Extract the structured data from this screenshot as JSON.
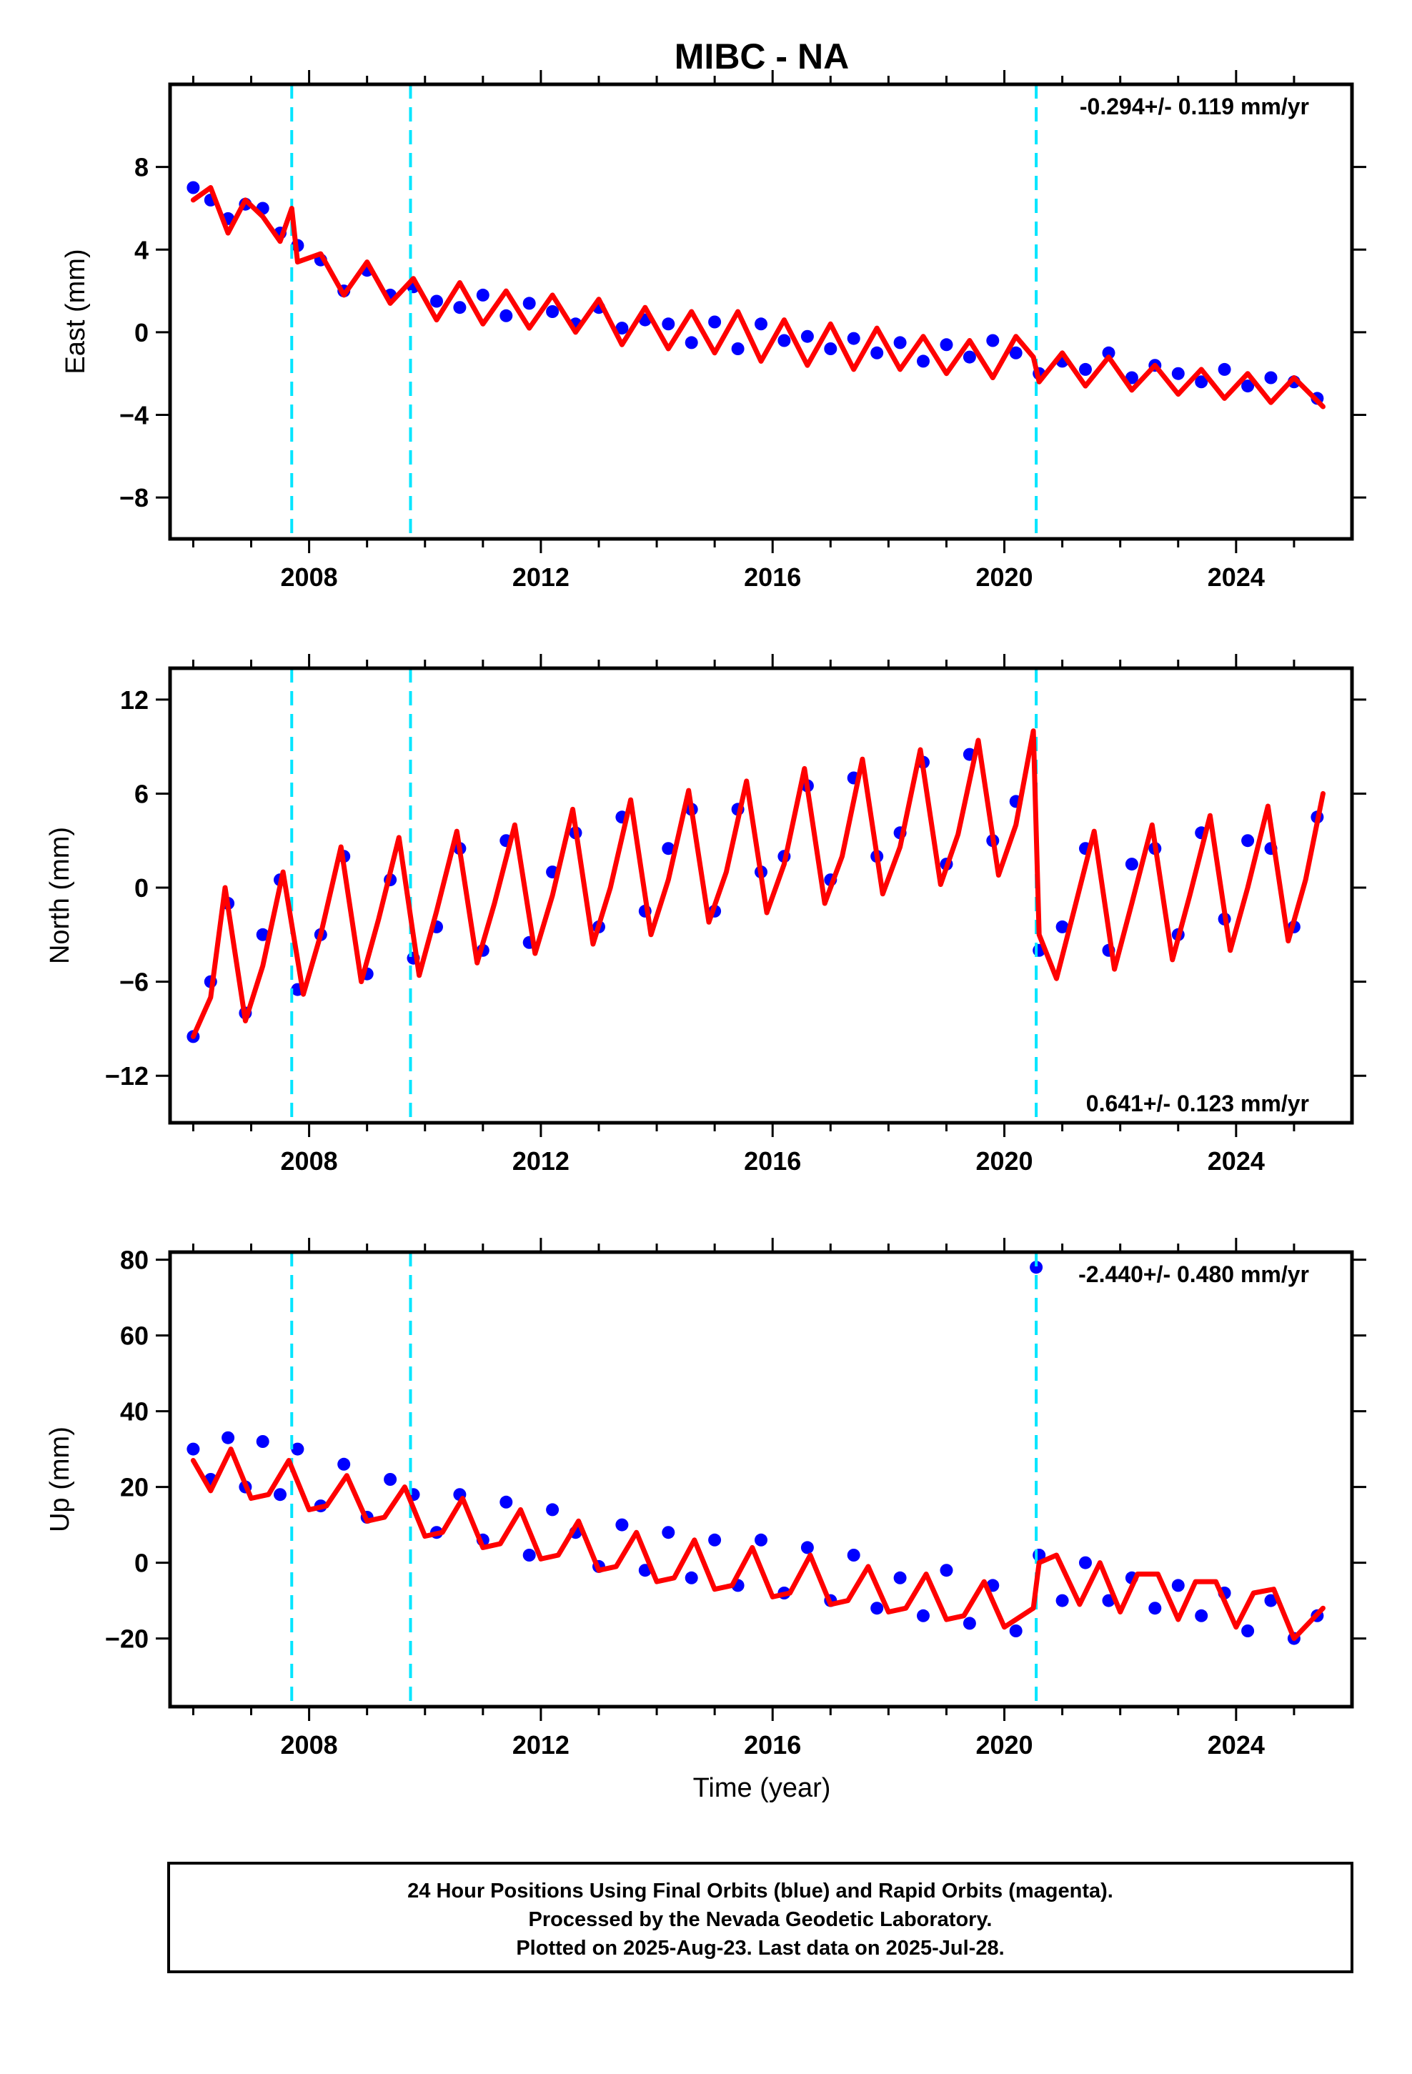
{
  "title": "MIBC - NA",
  "xlabel": "Time (year)",
  "x_tick_labels": [
    "2008",
    "2012",
    "2016",
    "2020",
    "2024"
  ],
  "colors": {
    "final_orbits": "#0000ff",
    "model_fit": "#ff0000",
    "event_lines": "#00e5ff",
    "frame": "#000000"
  },
  "chart_data": [
    {
      "type": "scatter",
      "ylabel": "East (mm)",
      "rate_label": "-0.294+/- 0.119 mm/yr",
      "rate_position": "top-right",
      "xlim": [
        2005.6,
        2026.0
      ],
      "ylim": [
        -10.0,
        12.0
      ],
      "x_ticks": [
        2008,
        2012,
        2016,
        2020,
        2024
      ],
      "y_ticks": [
        -8,
        -4,
        0,
        4,
        8
      ],
      "y_tick_labels": [
        "−8",
        "−4",
        "0",
        "4",
        "8"
      ],
      "event_lines": [
        2007.7,
        2009.75,
        2020.55
      ],
      "grid": false,
      "series": [
        {
          "kind": "points",
          "x": [
            2006.0,
            2006.3,
            2006.6,
            2006.9,
            2007.2,
            2007.5,
            2007.8,
            2008.2,
            2008.6,
            2009.0,
            2009.4,
            2009.8,
            2010.2,
            2010.6,
            2011.0,
            2011.4,
            2011.8,
            2012.2,
            2012.6,
            2013.0,
            2013.4,
            2013.8,
            2014.2,
            2014.6,
            2015.0,
            2015.4,
            2015.8,
            2016.2,
            2016.6,
            2017.0,
            2017.4,
            2017.8,
            2018.2,
            2018.6,
            2019.0,
            2019.4,
            2019.8,
            2020.2,
            2020.6,
            2021.0,
            2021.4,
            2021.8,
            2022.2,
            2022.6,
            2023.0,
            2023.4,
            2023.8,
            2024.2,
            2024.6,
            2025.0,
            2025.4
          ],
          "y": [
            7.0,
            6.4,
            5.5,
            6.2,
            6.0,
            4.8,
            4.2,
            3.5,
            2.0,
            3.0,
            1.8,
            2.2,
            1.5,
            1.2,
            1.8,
            0.8,
            1.4,
            1.0,
            0.4,
            1.2,
            0.2,
            0.6,
            0.4,
            -0.5,
            0.5,
            -0.8,
            0.4,
            -0.4,
            -0.2,
            -0.8,
            -0.3,
            -1.0,
            -0.5,
            -1.4,
            -0.6,
            -1.2,
            -0.4,
            -1.0,
            -2.0,
            -1.4,
            -1.8,
            -1.0,
            -2.2,
            -1.6,
            -2.0,
            -2.4,
            -1.8,
            -2.6,
            -2.2,
            -2.4,
            -3.2
          ]
        },
        {
          "kind": "line",
          "x": [
            2006.0,
            2006.3,
            2006.6,
            2006.9,
            2007.2,
            2007.5,
            2007.7,
            2007.8,
            2008.2,
            2008.6,
            2009.0,
            2009.4,
            2009.8,
            2010.2,
            2010.6,
            2011.0,
            2011.4,
            2011.8,
            2012.2,
            2012.6,
            2013.0,
            2013.4,
            2013.8,
            2014.2,
            2014.6,
            2015.0,
            2015.4,
            2015.8,
            2016.2,
            2016.6,
            2017.0,
            2017.4,
            2017.8,
            2018.2,
            2018.6,
            2019.0,
            2019.4,
            2019.8,
            2020.2,
            2020.5,
            2020.6,
            2021.0,
            2021.4,
            2021.8,
            2022.2,
            2022.6,
            2023.0,
            2023.4,
            2023.8,
            2024.2,
            2024.6,
            2025.0,
            2025.5
          ],
          "y": [
            6.4,
            7.0,
            4.8,
            6.4,
            5.6,
            4.4,
            6.0,
            3.4,
            3.8,
            1.8,
            3.4,
            1.4,
            2.6,
            0.6,
            2.4,
            0.4,
            2.0,
            0.2,
            1.8,
            0.0,
            1.6,
            -0.6,
            1.2,
            -0.8,
            1.0,
            -1.0,
            1.0,
            -1.4,
            0.6,
            -1.6,
            0.4,
            -1.8,
            0.2,
            -1.8,
            -0.2,
            -2.0,
            -0.4,
            -2.2,
            -0.2,
            -1.2,
            -2.4,
            -1.0,
            -2.6,
            -1.2,
            -2.8,
            -1.6,
            -3.0,
            -1.8,
            -3.2,
            -2.0,
            -3.4,
            -2.2,
            -3.6
          ]
        }
      ]
    },
    {
      "type": "scatter",
      "ylabel": "North (mm)",
      "rate_label": "0.641+/- 0.123 mm/yr",
      "rate_position": "bottom-right",
      "xlim": [
        2005.6,
        2026.0
      ],
      "ylim": [
        -15.0,
        14.0
      ],
      "x_ticks": [
        2008,
        2012,
        2016,
        2020,
        2024
      ],
      "y_ticks": [
        -12,
        -6,
        0,
        6,
        12
      ],
      "y_tick_labels": [
        "−12",
        "−6",
        "0",
        "6",
        "12"
      ],
      "event_lines": [
        2007.7,
        2009.75,
        2020.55
      ],
      "grid": false,
      "series": [
        {
          "kind": "points",
          "x": [
            2006.0,
            2006.3,
            2006.6,
            2006.9,
            2007.2,
            2007.5,
            2007.8,
            2008.2,
            2008.6,
            2009.0,
            2009.4,
            2009.8,
            2010.2,
            2010.6,
            2011.0,
            2011.4,
            2011.8,
            2012.2,
            2012.6,
            2013.0,
            2013.4,
            2013.8,
            2014.2,
            2014.6,
            2015.0,
            2015.4,
            2015.8,
            2016.2,
            2016.6,
            2017.0,
            2017.4,
            2017.8,
            2018.2,
            2018.6,
            2019.0,
            2019.4,
            2019.8,
            2020.2,
            2020.6,
            2021.0,
            2021.4,
            2021.8,
            2022.2,
            2022.6,
            2023.0,
            2023.4,
            2023.8,
            2024.2,
            2024.6,
            2025.0,
            2025.4
          ],
          "y": [
            -9.5,
            -6.0,
            -1.0,
            -8.0,
            -3.0,
            0.5,
            -6.5,
            -3.0,
            2.0,
            -5.5,
            0.5,
            -4.5,
            -2.5,
            2.5,
            -4.0,
            3.0,
            -3.5,
            1.0,
            3.5,
            -2.5,
            4.5,
            -1.5,
            2.5,
            5.0,
            -1.5,
            5.0,
            1.0,
            2.0,
            6.5,
            0.5,
            7.0,
            2.0,
            3.5,
            8.0,
            1.5,
            8.5,
            3.0,
            5.5,
            -4.0,
            -2.5,
            2.5,
            -4.0,
            1.5,
            2.5,
            -3.0,
            3.5,
            -2.0,
            3.0,
            2.5,
            -2.5,
            4.5
          ]
        },
        {
          "kind": "line",
          "x": [
            2006.0,
            2006.3,
            2006.55,
            2006.9,
            2007.2,
            2007.55,
            2007.9,
            2008.2,
            2008.55,
            2008.9,
            2009.2,
            2009.55,
            2009.9,
            2010.2,
            2010.55,
            2010.9,
            2011.2,
            2011.55,
            2011.9,
            2012.2,
            2012.55,
            2012.9,
            2013.2,
            2013.55,
            2013.9,
            2014.2,
            2014.55,
            2014.9,
            2015.2,
            2015.55,
            2015.9,
            2016.2,
            2016.55,
            2016.9,
            2017.2,
            2017.55,
            2017.9,
            2018.2,
            2018.55,
            2018.9,
            2019.2,
            2019.55,
            2019.9,
            2020.2,
            2020.5,
            2020.6,
            2020.9,
            2021.2,
            2021.55,
            2021.9,
            2022.2,
            2022.55,
            2022.9,
            2023.2,
            2023.55,
            2023.9,
            2024.2,
            2024.55,
            2024.9,
            2025.2,
            2025.5
          ],
          "y": [
            -9.5,
            -7.0,
            0.0,
            -8.5,
            -5.0,
            1.0,
            -6.8,
            -3.0,
            2.6,
            -6.0,
            -2.0,
            3.2,
            -5.6,
            -1.5,
            3.6,
            -4.8,
            -1.0,
            4.0,
            -4.2,
            -0.5,
            5.0,
            -3.6,
            0.0,
            5.6,
            -3.0,
            0.5,
            6.2,
            -2.2,
            1.0,
            6.8,
            -1.6,
            1.5,
            7.6,
            -1.0,
            2.0,
            8.2,
            -0.4,
            2.6,
            8.8,
            0.2,
            3.4,
            9.4,
            0.8,
            4.0,
            10.0,
            -3.0,
            -5.8,
            -1.5,
            3.6,
            -5.2,
            -1.0,
            4.0,
            -4.6,
            -0.5,
            4.6,
            -4.0,
            0.0,
            5.2,
            -3.4,
            0.5,
            6.0
          ]
        }
      ]
    },
    {
      "type": "scatter",
      "ylabel": "Up (mm)",
      "rate_label": "-2.440+/- 0.480 mm/yr",
      "rate_position": "top-right",
      "xlim": [
        2005.6,
        2026.0
      ],
      "ylim": [
        -38.0,
        82.0
      ],
      "x_ticks": [
        2008,
        2012,
        2016,
        2020,
        2024
      ],
      "y_ticks": [
        -20,
        0,
        20,
        40,
        60,
        80
      ],
      "y_tick_labels": [
        "−20",
        "0",
        "20",
        "40",
        "60",
        "80"
      ],
      "event_lines": [
        2007.7,
        2009.75,
        2020.55
      ],
      "grid": false,
      "series": [
        {
          "kind": "points",
          "x": [
            2006.0,
            2006.3,
            2006.6,
            2006.9,
            2007.2,
            2007.5,
            2007.8,
            2008.2,
            2008.6,
            2009.0,
            2009.4,
            2009.8,
            2010.2,
            2010.6,
            2011.0,
            2011.4,
            2011.8,
            2012.2,
            2012.6,
            2013.0,
            2013.4,
            2013.8,
            2014.2,
            2014.6,
            2015.0,
            2015.4,
            2015.8,
            2016.2,
            2016.6,
            2017.0,
            2017.4,
            2017.8,
            2018.2,
            2018.6,
            2019.0,
            2019.4,
            2019.8,
            2020.2,
            2020.55,
            2020.6,
            2021.0,
            2021.4,
            2021.8,
            2022.2,
            2022.6,
            2023.0,
            2023.4,
            2023.8,
            2024.2,
            2024.6,
            2025.0,
            2025.4
          ],
          "y": [
            30.0,
            22.0,
            33.0,
            20.0,
            32.0,
            18.0,
            30.0,
            15.0,
            26.0,
            12.0,
            22.0,
            18.0,
            8.0,
            18.0,
            6.0,
            16.0,
            2.0,
            14.0,
            8.0,
            -1.0,
            10.0,
            -2.0,
            8.0,
            -4.0,
            6.0,
            -6.0,
            6.0,
            -8.0,
            4.0,
            -10.0,
            2.0,
            -12.0,
            -4.0,
            -14.0,
            -2.0,
            -16.0,
            -6.0,
            -18.0,
            78.0,
            2.0,
            -10.0,
            0.0,
            -10.0,
            -4.0,
            -12.0,
            -6.0,
            -14.0,
            -8.0,
            -18.0,
            -10.0,
            -20.0,
            -14.0
          ]
        },
        {
          "kind": "line",
          "x": [
            2006.0,
            2006.3,
            2006.65,
            2007.0,
            2007.3,
            2007.65,
            2008.0,
            2008.3,
            2008.65,
            2009.0,
            2009.3,
            2009.65,
            2010.0,
            2010.3,
            2010.65,
            2011.0,
            2011.3,
            2011.65,
            2012.0,
            2012.3,
            2012.65,
            2013.0,
            2013.3,
            2013.65,
            2014.0,
            2014.3,
            2014.65,
            2015.0,
            2015.3,
            2015.65,
            2016.0,
            2016.3,
            2016.65,
            2017.0,
            2017.3,
            2017.65,
            2018.0,
            2018.3,
            2018.65,
            2019.0,
            2019.3,
            2019.65,
            2020.0,
            2020.5,
            2020.6,
            2020.9,
            2021.3,
            2021.65,
            2022.0,
            2022.3,
            2022.65,
            2023.0,
            2023.3,
            2023.65,
            2024.0,
            2024.3,
            2024.65,
            2025.0,
            2025.5
          ],
          "y": [
            27.0,
            19.0,
            30.0,
            17.0,
            18.0,
            27.0,
            14.0,
            15.0,
            23.0,
            11.0,
            12.0,
            20.0,
            7.0,
            8.0,
            17.0,
            4.0,
            5.0,
            14.0,
            1.0,
            2.0,
            11.0,
            -2.0,
            -1.0,
            8.0,
            -5.0,
            -4.0,
            6.0,
            -7.0,
            -6.0,
            4.0,
            -9.0,
            -8.0,
            2.0,
            -11.0,
            -10.0,
            -1.0,
            -13.0,
            -12.0,
            -3.0,
            -15.0,
            -14.0,
            -5.0,
            -17.0,
            -12.0,
            0.0,
            2.0,
            -11.0,
            0.0,
            -13.0,
            -3.0,
            -3.0,
            -15.0,
            -5.0,
            -5.0,
            -17.0,
            -8.0,
            -7.0,
            -20.0,
            -12.0
          ]
        }
      ]
    }
  ],
  "footer": {
    "line1": "24 Hour Positions Using Final Orbits (blue) and Rapid Orbits (magenta).",
    "line2": "Processed by the Nevada Geodetic Laboratory.",
    "line3": "Plotted on 2025-Aug-23. Last data on 2025-Jul-28."
  }
}
